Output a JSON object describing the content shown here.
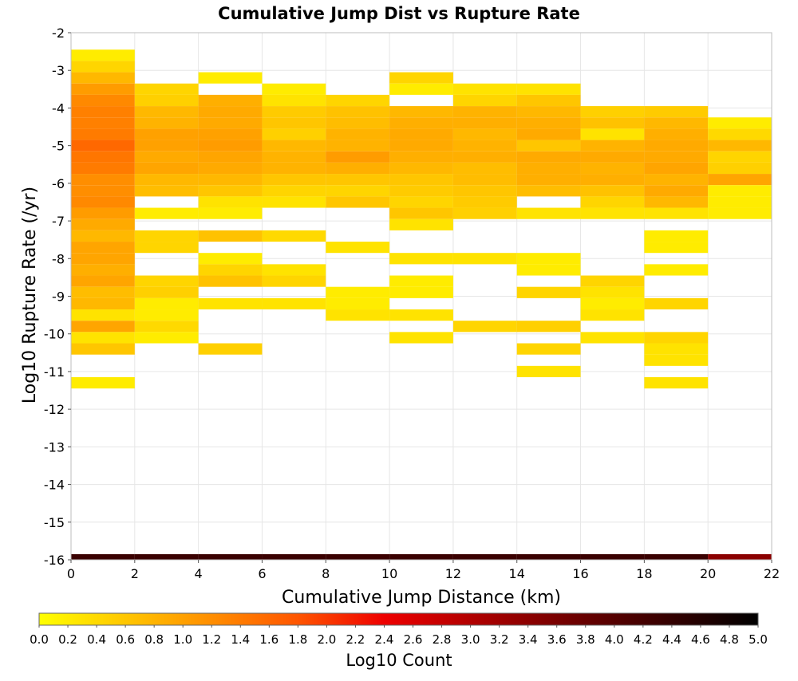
{
  "chart_data": {
    "type": "heatmap",
    "title": "Cumulative Jump Dist vs Rupture Rate",
    "xlabel": "Cumulative Jump Distance (km)",
    "ylabel": "Log10 Rupture Rate (/yr)",
    "xlim": [
      0,
      22
    ],
    "ylim": [
      -16,
      -2
    ],
    "x_bin_width": 2,
    "y_bin_height": 0.3,
    "grid": true,
    "x_ticks": [
      "0",
      "2",
      "4",
      "6",
      "8",
      "10",
      "12",
      "14",
      "16",
      "18",
      "20",
      "22"
    ],
    "y_ticks": [
      "-2",
      "-3",
      "-4",
      "-5",
      "-6",
      "-7",
      "-8",
      "-9",
      "-10",
      "-11",
      "-12",
      "-13",
      "-14",
      "-15",
      "-16"
    ],
    "colorbar": {
      "label": "Log10 Count",
      "min": 0.0,
      "max": 5.0,
      "ticks": [
        "0.0",
        "0.2",
        "0.4",
        "0.6",
        "0.8",
        "1.0",
        "1.2",
        "1.4",
        "1.6",
        "1.8",
        "2.0",
        "2.2",
        "2.4",
        "2.6",
        "2.8",
        "3.0",
        "3.2",
        "3.4",
        "3.6",
        "3.8",
        "4.0",
        "4.2",
        "4.4",
        "4.6",
        "4.8",
        "5.0"
      ],
      "stops": [
        {
          "v": 0.0,
          "color": "#ffff00"
        },
        {
          "v": 0.9,
          "color": "#ffaa00"
        },
        {
          "v": 1.8,
          "color": "#ff5500"
        },
        {
          "v": 2.4,
          "color": "#ee0000"
        },
        {
          "v": 3.0,
          "color": "#b20000"
        },
        {
          "v": 3.8,
          "color": "#660000"
        },
        {
          "v": 4.5,
          "color": "#2a0000"
        },
        {
          "v": 5.0,
          "color": "#000000"
        }
      ]
    },
    "cells": [
      {
        "x": 0,
        "y": -2.6,
        "v": 0.2
      },
      {
        "x": 0,
        "y": -2.9,
        "v": 0.45
      },
      {
        "x": 0,
        "y": -3.2,
        "v": 0.75
      },
      {
        "x": 0,
        "y": -3.5,
        "v": 1.05
      },
      {
        "x": 0,
        "y": -3.8,
        "v": 1.25
      },
      {
        "x": 0,
        "y": -4.1,
        "v": 1.35
      },
      {
        "x": 0,
        "y": -4.4,
        "v": 1.35
      },
      {
        "x": 0,
        "y": -4.7,
        "v": 1.4
      },
      {
        "x": 0,
        "y": -5.0,
        "v": 1.6
      },
      {
        "x": 0,
        "y": -5.3,
        "v": 1.45
      },
      {
        "x": 0,
        "y": -5.6,
        "v": 1.4
      },
      {
        "x": 0,
        "y": -5.9,
        "v": 1.2
      },
      {
        "x": 0,
        "y": -6.2,
        "v": 1.2
      },
      {
        "x": 0,
        "y": -6.5,
        "v": 1.25
      },
      {
        "x": 0,
        "y": -6.8,
        "v": 1.05
      },
      {
        "x": 0,
        "y": -7.1,
        "v": 0.9
      },
      {
        "x": 0,
        "y": -7.4,
        "v": 0.75
      },
      {
        "x": 0,
        "y": -7.7,
        "v": 0.95
      },
      {
        "x": 0,
        "y": -8.0,
        "v": 0.95
      },
      {
        "x": 0,
        "y": -8.3,
        "v": 0.85
      },
      {
        "x": 0,
        "y": -8.6,
        "v": 0.95
      },
      {
        "x": 0,
        "y": -8.9,
        "v": 0.7
      },
      {
        "x": 0,
        "y": -9.2,
        "v": 0.75
      },
      {
        "x": 0,
        "y": -9.5,
        "v": 0.3
      },
      {
        "x": 0,
        "y": -9.8,
        "v": 0.95
      },
      {
        "x": 0,
        "y": -10.1,
        "v": 0.3
      },
      {
        "x": 0,
        "y": -10.4,
        "v": 0.6
      },
      {
        "x": 0,
        "y": -11.3,
        "v": 0.2
      },
      {
        "x": 2,
        "y": -3.5,
        "v": 0.45
      },
      {
        "x": 2,
        "y": -3.8,
        "v": 0.5
      },
      {
        "x": 2,
        "y": -4.1,
        "v": 0.75
      },
      {
        "x": 2,
        "y": -4.4,
        "v": 0.8
      },
      {
        "x": 2,
        "y": -4.7,
        "v": 1.0
      },
      {
        "x": 2,
        "y": -5.0,
        "v": 1.0
      },
      {
        "x": 2,
        "y": -5.3,
        "v": 0.9
      },
      {
        "x": 2,
        "y": -5.6,
        "v": 0.95
      },
      {
        "x": 2,
        "y": -5.9,
        "v": 0.75
      },
      {
        "x": 2,
        "y": -6.2,
        "v": 0.7
      },
      {
        "x": 2,
        "y": -6.8,
        "v": 0.2
      },
      {
        "x": 2,
        "y": -7.4,
        "v": 0.45
      },
      {
        "x": 2,
        "y": -7.7,
        "v": 0.45
      },
      {
        "x": 2,
        "y": -8.6,
        "v": 0.45
      },
      {
        "x": 2,
        "y": -8.9,
        "v": 0.5
      },
      {
        "x": 2,
        "y": -9.2,
        "v": 0.2
      },
      {
        "x": 2,
        "y": -9.5,
        "v": 0.2
      },
      {
        "x": 2,
        "y": -9.8,
        "v": 0.4
      },
      {
        "x": 2,
        "y": -10.1,
        "v": 0.2
      },
      {
        "x": 4,
        "y": -3.2,
        "v": 0.2
      },
      {
        "x": 4,
        "y": -3.8,
        "v": 0.85
      },
      {
        "x": 4,
        "y": -4.1,
        "v": 0.9
      },
      {
        "x": 4,
        "y": -4.4,
        "v": 0.9
      },
      {
        "x": 4,
        "y": -4.7,
        "v": 1.0
      },
      {
        "x": 4,
        "y": -5.0,
        "v": 1.05
      },
      {
        "x": 4,
        "y": -5.3,
        "v": 0.95
      },
      {
        "x": 4,
        "y": -5.6,
        "v": 0.9
      },
      {
        "x": 4,
        "y": -5.9,
        "v": 0.75
      },
      {
        "x": 4,
        "y": -6.2,
        "v": 0.6
      },
      {
        "x": 4,
        "y": -6.5,
        "v": 0.3
      },
      {
        "x": 4,
        "y": -6.8,
        "v": 0.2
      },
      {
        "x": 4,
        "y": -7.4,
        "v": 0.65
      },
      {
        "x": 4,
        "y": -8.0,
        "v": 0.2
      },
      {
        "x": 4,
        "y": -8.3,
        "v": 0.45
      },
      {
        "x": 4,
        "y": -8.6,
        "v": 0.65
      },
      {
        "x": 4,
        "y": -9.2,
        "v": 0.3
      },
      {
        "x": 4,
        "y": -10.4,
        "v": 0.5
      },
      {
        "x": 6,
        "y": -3.5,
        "v": 0.2
      },
      {
        "x": 6,
        "y": -3.8,
        "v": 0.3
      },
      {
        "x": 6,
        "y": -4.1,
        "v": 0.55
      },
      {
        "x": 6,
        "y": -4.4,
        "v": 0.6
      },
      {
        "x": 6,
        "y": -4.7,
        "v": 0.5
      },
      {
        "x": 6,
        "y": -5.0,
        "v": 0.75
      },
      {
        "x": 6,
        "y": -5.3,
        "v": 0.8
      },
      {
        "x": 6,
        "y": -5.6,
        "v": 0.8
      },
      {
        "x": 6,
        "y": -5.9,
        "v": 0.6
      },
      {
        "x": 6,
        "y": -6.2,
        "v": 0.45
      },
      {
        "x": 6,
        "y": -6.5,
        "v": 0.3
      },
      {
        "x": 6,
        "y": -7.4,
        "v": 0.4
      },
      {
        "x": 6,
        "y": -8.3,
        "v": 0.3
      },
      {
        "x": 6,
        "y": -8.6,
        "v": 0.45
      },
      {
        "x": 6,
        "y": -9.2,
        "v": 0.3
      },
      {
        "x": 8,
        "y": -3.8,
        "v": 0.45
      },
      {
        "x": 8,
        "y": -4.1,
        "v": 0.65
      },
      {
        "x": 8,
        "y": -4.4,
        "v": 0.7
      },
      {
        "x": 8,
        "y": -4.7,
        "v": 0.8
      },
      {
        "x": 8,
        "y": -5.0,
        "v": 0.8
      },
      {
        "x": 8,
        "y": -5.3,
        "v": 1.05
      },
      {
        "x": 8,
        "y": -5.6,
        "v": 0.85
      },
      {
        "x": 8,
        "y": -5.9,
        "v": 0.6
      },
      {
        "x": 8,
        "y": -6.2,
        "v": 0.45
      },
      {
        "x": 8,
        "y": -6.5,
        "v": 0.6
      },
      {
        "x": 8,
        "y": -7.7,
        "v": 0.3
      },
      {
        "x": 8,
        "y": -8.9,
        "v": 0.2
      },
      {
        "x": 8,
        "y": -9.2,
        "v": 0.2
      },
      {
        "x": 8,
        "y": -9.5,
        "v": 0.3
      },
      {
        "x": 10,
        "y": -3.2,
        "v": 0.45
      },
      {
        "x": 10,
        "y": -3.5,
        "v": 0.2
      },
      {
        "x": 10,
        "y": -4.1,
        "v": 0.75
      },
      {
        "x": 10,
        "y": -4.4,
        "v": 0.85
      },
      {
        "x": 10,
        "y": -4.7,
        "v": 0.9
      },
      {
        "x": 10,
        "y": -5.0,
        "v": 0.9
      },
      {
        "x": 10,
        "y": -5.3,
        "v": 0.85
      },
      {
        "x": 10,
        "y": -5.6,
        "v": 0.75
      },
      {
        "x": 10,
        "y": -5.9,
        "v": 0.6
      },
      {
        "x": 10,
        "y": -6.2,
        "v": 0.55
      },
      {
        "x": 10,
        "y": -6.5,
        "v": 0.45
      },
      {
        "x": 10,
        "y": -6.8,
        "v": 0.6
      },
      {
        "x": 10,
        "y": -7.1,
        "v": 0.3
      },
      {
        "x": 10,
        "y": -8.0,
        "v": 0.3
      },
      {
        "x": 10,
        "y": -8.6,
        "v": 0.2
      },
      {
        "x": 10,
        "y": -8.9,
        "v": 0.2
      },
      {
        "x": 10,
        "y": -9.5,
        "v": 0.3
      },
      {
        "x": 10,
        "y": -10.1,
        "v": 0.3
      },
      {
        "x": 12,
        "y": -3.5,
        "v": 0.3
      },
      {
        "x": 12,
        "y": -3.8,
        "v": 0.45
      },
      {
        "x": 12,
        "y": -4.1,
        "v": 0.8
      },
      {
        "x": 12,
        "y": -4.4,
        "v": 0.85
      },
      {
        "x": 12,
        "y": -4.7,
        "v": 0.75
      },
      {
        "x": 12,
        "y": -5.0,
        "v": 0.8
      },
      {
        "x": 12,
        "y": -5.3,
        "v": 0.85
      },
      {
        "x": 12,
        "y": -5.6,
        "v": 0.7
      },
      {
        "x": 12,
        "y": -5.9,
        "v": 0.7
      },
      {
        "x": 12,
        "y": -6.2,
        "v": 0.6
      },
      {
        "x": 12,
        "y": -6.5,
        "v": 0.55
      },
      {
        "x": 12,
        "y": -6.8,
        "v": 0.5
      },
      {
        "x": 12,
        "y": -8.0,
        "v": 0.3
      },
      {
        "x": 12,
        "y": -9.8,
        "v": 0.45
      },
      {
        "x": 14,
        "y": -3.5,
        "v": 0.3
      },
      {
        "x": 14,
        "y": -3.8,
        "v": 0.6
      },
      {
        "x": 14,
        "y": -4.1,
        "v": 0.75
      },
      {
        "x": 14,
        "y": -4.4,
        "v": 0.85
      },
      {
        "x": 14,
        "y": -4.7,
        "v": 0.9
      },
      {
        "x": 14,
        "y": -5.0,
        "v": 0.6
      },
      {
        "x": 14,
        "y": -5.3,
        "v": 0.9
      },
      {
        "x": 14,
        "y": -5.6,
        "v": 0.85
      },
      {
        "x": 14,
        "y": -5.9,
        "v": 0.85
      },
      {
        "x": 14,
        "y": -6.2,
        "v": 0.7
      },
      {
        "x": 14,
        "y": -6.8,
        "v": 0.3
      },
      {
        "x": 14,
        "y": -8.0,
        "v": 0.2
      },
      {
        "x": 14,
        "y": -8.3,
        "v": 0.2
      },
      {
        "x": 14,
        "y": -8.9,
        "v": 0.45
      },
      {
        "x": 14,
        "y": -9.8,
        "v": 0.5
      },
      {
        "x": 14,
        "y": -10.4,
        "v": 0.45
      },
      {
        "x": 14,
        "y": -11.0,
        "v": 0.3
      },
      {
        "x": 16,
        "y": -4.1,
        "v": 0.5
      },
      {
        "x": 16,
        "y": -4.4,
        "v": 0.65
      },
      {
        "x": 16,
        "y": -4.7,
        "v": 0.3
      },
      {
        "x": 16,
        "y": -5.0,
        "v": 0.8
      },
      {
        "x": 16,
        "y": -5.3,
        "v": 0.9
      },
      {
        "x": 16,
        "y": -5.6,
        "v": 0.8
      },
      {
        "x": 16,
        "y": -5.9,
        "v": 0.85
      },
      {
        "x": 16,
        "y": -6.2,
        "v": 0.65
      },
      {
        "x": 16,
        "y": -6.5,
        "v": 0.45
      },
      {
        "x": 16,
        "y": -6.8,
        "v": 0.3
      },
      {
        "x": 16,
        "y": -8.6,
        "v": 0.45
      },
      {
        "x": 16,
        "y": -8.9,
        "v": 0.3
      },
      {
        "x": 16,
        "y": -9.2,
        "v": 0.2
      },
      {
        "x": 16,
        "y": -9.5,
        "v": 0.3
      },
      {
        "x": 16,
        "y": -10.1,
        "v": 0.3
      },
      {
        "x": 18,
        "y": -4.1,
        "v": 0.55
      },
      {
        "x": 18,
        "y": -4.4,
        "v": 0.75
      },
      {
        "x": 18,
        "y": -4.7,
        "v": 0.85
      },
      {
        "x": 18,
        "y": -5.0,
        "v": 0.9
      },
      {
        "x": 18,
        "y": -5.3,
        "v": 0.9
      },
      {
        "x": 18,
        "y": -5.6,
        "v": 0.95
      },
      {
        "x": 18,
        "y": -5.9,
        "v": 0.8
      },
      {
        "x": 18,
        "y": -6.2,
        "v": 0.9
      },
      {
        "x": 18,
        "y": -6.5,
        "v": 0.75
      },
      {
        "x": 18,
        "y": -6.8,
        "v": 0.3
      },
      {
        "x": 18,
        "y": -7.4,
        "v": 0.2
      },
      {
        "x": 18,
        "y": -7.7,
        "v": 0.2
      },
      {
        "x": 18,
        "y": -8.3,
        "v": 0.2
      },
      {
        "x": 18,
        "y": -9.2,
        "v": 0.45
      },
      {
        "x": 18,
        "y": -10.1,
        "v": 0.45
      },
      {
        "x": 18,
        "y": -10.4,
        "v": 0.3
      },
      {
        "x": 18,
        "y": -10.7,
        "v": 0.3
      },
      {
        "x": 18,
        "y": -11.3,
        "v": 0.3
      },
      {
        "x": 20,
        "y": -4.4,
        "v": 0.2
      },
      {
        "x": 20,
        "y": -4.7,
        "v": 0.4
      },
      {
        "x": 20,
        "y": -5.0,
        "v": 0.75
      },
      {
        "x": 20,
        "y": -5.3,
        "v": 0.45
      },
      {
        "x": 20,
        "y": -5.6,
        "v": 0.5
      },
      {
        "x": 20,
        "y": -5.9,
        "v": 0.95
      },
      {
        "x": 20,
        "y": -6.2,
        "v": 0.2
      },
      {
        "x": 20,
        "y": -6.5,
        "v": 0.2
      },
      {
        "x": 20,
        "y": -6.8,
        "v": 0.2
      }
    ],
    "bottom_row": {
      "y": -16.0,
      "values": [
        {
          "x": 0,
          "color": "#3a0000"
        },
        {
          "x": 2,
          "color": "#3a0000"
        },
        {
          "x": 4,
          "color": "#3a0000"
        },
        {
          "x": 6,
          "color": "#3a0000"
        },
        {
          "x": 8,
          "color": "#3a0000"
        },
        {
          "x": 10,
          "color": "#3a0000"
        },
        {
          "x": 12,
          "color": "#3a0000"
        },
        {
          "x": 14,
          "color": "#3a0000"
        },
        {
          "x": 16,
          "color": "#3a0000"
        },
        {
          "x": 18,
          "color": "#3a0000"
        },
        {
          "x": 20,
          "color": "#8b0000"
        }
      ]
    }
  }
}
